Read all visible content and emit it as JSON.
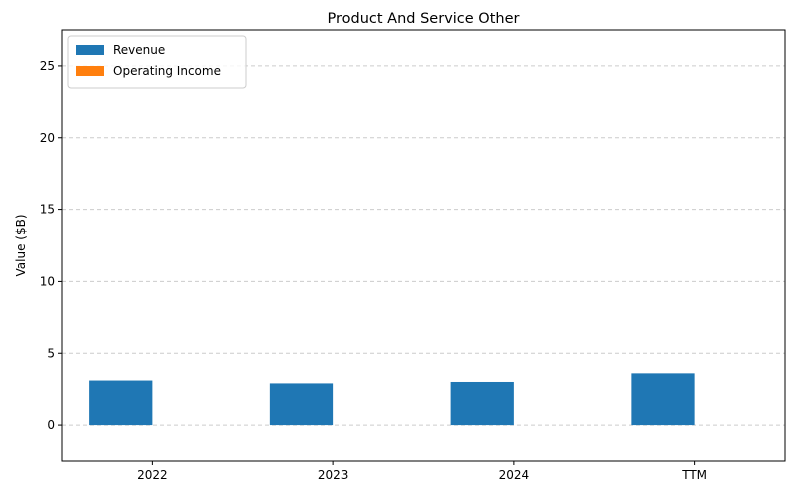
{
  "chart_data": {
    "type": "bar",
    "title": "Product And Service Other",
    "xlabel": "",
    "ylabel": "Value ($B)",
    "categories": [
      "2022",
      "2023",
      "2024",
      "TTM"
    ],
    "series": [
      {
        "name": "Revenue",
        "color": "#1f77b4",
        "values": [
          3.1,
          2.9,
          3.0,
          3.6
        ]
      },
      {
        "name": "Operating Income",
        "color": "#ff7f0e",
        "values": [
          0,
          0,
          0,
          0
        ]
      }
    ],
    "ylim": [
      -2.5,
      27.5
    ],
    "yticks": [
      0,
      5,
      10,
      15,
      20,
      25
    ],
    "grid": "y-dashed",
    "legend": "top-left"
  }
}
